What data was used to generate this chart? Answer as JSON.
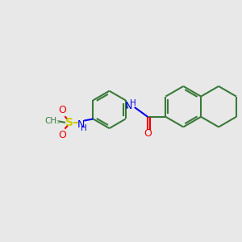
{
  "bg_color": "#e8e8e8",
  "bond_color": "#3a7a3a",
  "bond_width": 1.5,
  "N_color": "#0000ee",
  "O_color": "#ee0000",
  "S_color": "#cccc00",
  "figsize": [
    3.0,
    3.0
  ],
  "dpi": 100,
  "xlim": [
    0,
    10
  ],
  "ylim": [
    0,
    10
  ]
}
